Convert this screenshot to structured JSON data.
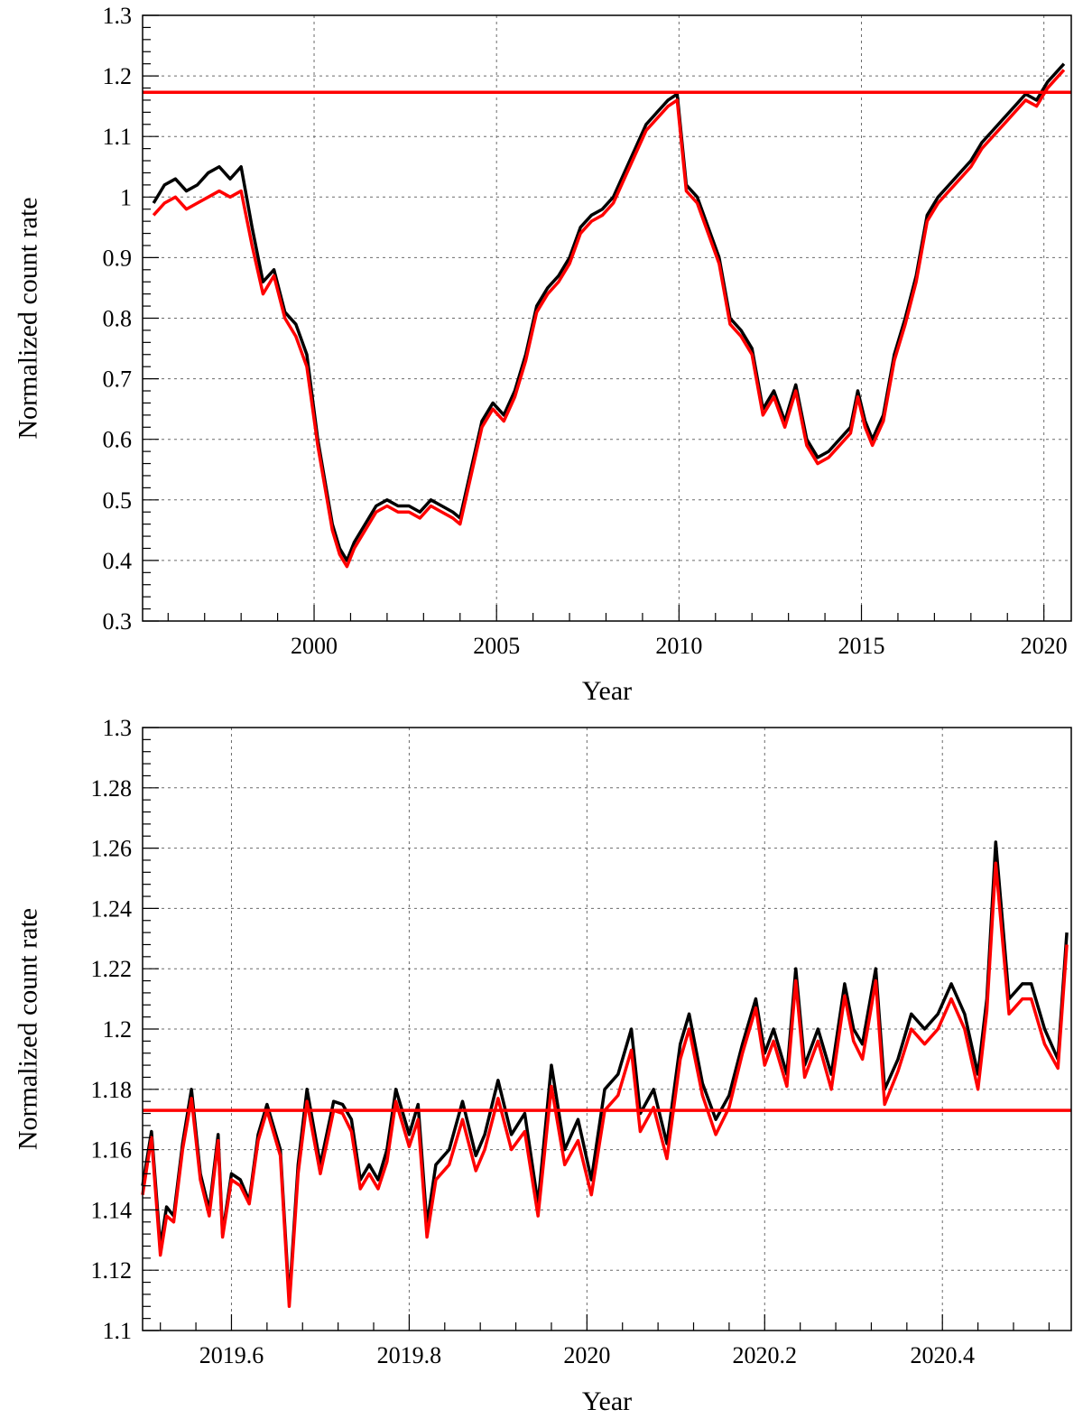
{
  "chart_data": [
    {
      "type": "line",
      "title": "",
      "xlabel": "Year",
      "ylabel": "Normalized count rate",
      "xlim": [
        1995.3,
        2020.75
      ],
      "ylim": [
        0.3,
        1.3
      ],
      "grid": true,
      "x_ticks": [
        2000,
        2005,
        2010,
        2015,
        2020
      ],
      "x_tick_labels": [
        "2000",
        "2005",
        "2010",
        "2015",
        "2020"
      ],
      "y_ticks": [
        0.3,
        0.4,
        0.5,
        0.6,
        0.7,
        0.8,
        0.9,
        1.0,
        1.1,
        1.2,
        1.3
      ],
      "y_tick_labels": [
        "0.3",
        "0.4",
        "0.5",
        "0.6",
        "0.7",
        "0.8",
        "0.9",
        "1",
        "1.1",
        "1.2",
        "1.3"
      ],
      "reference_line": {
        "y": 1.173,
        "color": "#ff0000"
      },
      "series": [
        {
          "color": "#000000",
          "x": [
            1995.6,
            1995.9,
            1996.2,
            1996.5,
            1996.8,
            1997.1,
            1997.4,
            1997.7,
            1998.0,
            1998.3,
            1998.6,
            1998.9,
            1999.2,
            1999.5,
            1999.8,
            2000.1,
            2000.3,
            2000.5,
            2000.7,
            2000.9,
            2001.1,
            2001.4,
            2001.7,
            2002.0,
            2002.3,
            2002.6,
            2002.9,
            2003.2,
            2003.5,
            2003.8,
            2004.0,
            2004.3,
            2004.6,
            2004.9,
            2005.2,
            2005.5,
            2005.8,
            2006.1,
            2006.4,
            2006.7,
            2007.0,
            2007.3,
            2007.6,
            2007.9,
            2008.2,
            2008.5,
            2008.8,
            2009.1,
            2009.4,
            2009.7,
            2009.95,
            2010.2,
            2010.5,
            2010.8,
            2011.1,
            2011.4,
            2011.7,
            2012.0,
            2012.3,
            2012.6,
            2012.9,
            2013.2,
            2013.5,
            2013.8,
            2014.1,
            2014.4,
            2014.7,
            2014.9,
            2015.1,
            2015.3,
            2015.6,
            2015.9,
            2016.2,
            2016.5,
            2016.8,
            2017.1,
            2017.4,
            2017.7,
            2018.0,
            2018.3,
            2018.6,
            2018.9,
            2019.2,
            2019.5,
            2019.8,
            2020.1,
            2020.4,
            2020.55
          ],
          "y": [
            0.99,
            1.02,
            1.03,
            1.01,
            1.02,
            1.04,
            1.05,
            1.03,
            1.05,
            0.95,
            0.86,
            0.88,
            0.81,
            0.79,
            0.74,
            0.6,
            0.53,
            0.46,
            0.42,
            0.4,
            0.43,
            0.46,
            0.49,
            0.5,
            0.49,
            0.49,
            0.48,
            0.5,
            0.49,
            0.48,
            0.47,
            0.55,
            0.63,
            0.66,
            0.64,
            0.68,
            0.74,
            0.82,
            0.85,
            0.87,
            0.9,
            0.95,
            0.97,
            0.98,
            1.0,
            1.04,
            1.08,
            1.12,
            1.14,
            1.16,
            1.17,
            1.02,
            1.0,
            0.95,
            0.9,
            0.8,
            0.78,
            0.75,
            0.65,
            0.68,
            0.63,
            0.69,
            0.6,
            0.57,
            0.58,
            0.6,
            0.62,
            0.68,
            0.63,
            0.6,
            0.64,
            0.74,
            0.8,
            0.87,
            0.97,
            1.0,
            1.02,
            1.04,
            1.06,
            1.09,
            1.11,
            1.13,
            1.15,
            1.17,
            1.16,
            1.19,
            1.21,
            1.22
          ]
        },
        {
          "color": "#ff0000",
          "x": [
            1995.6,
            1995.9,
            1996.2,
            1996.5,
            1996.8,
            1997.1,
            1997.4,
            1997.7,
            1998.0,
            1998.3,
            1998.6,
            1998.9,
            1999.2,
            1999.5,
            1999.8,
            2000.1,
            2000.3,
            2000.5,
            2000.7,
            2000.9,
            2001.1,
            2001.4,
            2001.7,
            2002.0,
            2002.3,
            2002.6,
            2002.9,
            2003.2,
            2003.5,
            2003.8,
            2004.0,
            2004.3,
            2004.6,
            2004.9,
            2005.2,
            2005.5,
            2005.8,
            2006.1,
            2006.4,
            2006.7,
            2007.0,
            2007.3,
            2007.6,
            2007.9,
            2008.2,
            2008.5,
            2008.8,
            2009.1,
            2009.4,
            2009.7,
            2009.95,
            2010.2,
            2010.5,
            2010.8,
            2011.1,
            2011.4,
            2011.7,
            2012.0,
            2012.3,
            2012.6,
            2012.9,
            2013.2,
            2013.5,
            2013.8,
            2014.1,
            2014.4,
            2014.7,
            2014.9,
            2015.1,
            2015.3,
            2015.6,
            2015.9,
            2016.2,
            2016.5,
            2016.8,
            2017.1,
            2017.4,
            2017.7,
            2018.0,
            2018.3,
            2018.6,
            2018.9,
            2019.2,
            2019.5,
            2019.8,
            2020.1,
            2020.4,
            2020.55
          ],
          "y": [
            0.97,
            0.99,
            1.0,
            0.98,
            0.99,
            1.0,
            1.01,
            1.0,
            1.01,
            0.92,
            0.84,
            0.87,
            0.8,
            0.77,
            0.72,
            0.59,
            0.52,
            0.45,
            0.41,
            0.39,
            0.42,
            0.45,
            0.48,
            0.49,
            0.48,
            0.48,
            0.47,
            0.49,
            0.48,
            0.47,
            0.46,
            0.54,
            0.62,
            0.65,
            0.63,
            0.67,
            0.73,
            0.81,
            0.84,
            0.86,
            0.89,
            0.94,
            0.96,
            0.97,
            0.99,
            1.03,
            1.07,
            1.11,
            1.13,
            1.15,
            1.16,
            1.01,
            0.99,
            0.94,
            0.89,
            0.79,
            0.77,
            0.74,
            0.64,
            0.67,
            0.62,
            0.68,
            0.59,
            0.56,
            0.57,
            0.59,
            0.61,
            0.67,
            0.62,
            0.59,
            0.63,
            0.73,
            0.79,
            0.86,
            0.96,
            0.99,
            1.01,
            1.03,
            1.05,
            1.08,
            1.1,
            1.12,
            1.14,
            1.16,
            1.15,
            1.18,
            1.2,
            1.21
          ]
        }
      ]
    },
    {
      "type": "line",
      "title": "",
      "xlabel": "Year",
      "ylabel": "Normalized count rate",
      "xlim": [
        2019.5,
        2020.545
      ],
      "ylim": [
        1.1,
        1.3
      ],
      "grid": true,
      "x_ticks": [
        2019.6,
        2019.8,
        2020.0,
        2020.2,
        2020.4
      ],
      "x_tick_labels": [
        "2019.6",
        "2019.8",
        "2020",
        "2020.2",
        "2020.4"
      ],
      "y_ticks": [
        1.1,
        1.12,
        1.14,
        1.16,
        1.18,
        1.2,
        1.22,
        1.24,
        1.26,
        1.28,
        1.3
      ],
      "y_tick_labels": [
        "1.1",
        "1.12",
        "1.14",
        "1.16",
        "1.18",
        "1.2",
        "1.22",
        "1.24",
        "1.26",
        "1.28",
        "1.3"
      ],
      "reference_line": {
        "y": 1.173,
        "color": "#ff0000"
      },
      "series": [
        {
          "color": "#000000",
          "x": [
            2019.5,
            2019.51,
            2019.52,
            2019.527,
            2019.535,
            2019.545,
            2019.555,
            2019.565,
            2019.575,
            2019.585,
            2019.59,
            2019.6,
            2019.61,
            2019.62,
            2019.63,
            2019.64,
            2019.655,
            2019.665,
            2019.675,
            2019.685,
            2019.7,
            2019.715,
            2019.725,
            2019.735,
            2019.745,
            2019.755,
            2019.765,
            2019.775,
            2019.785,
            2019.8,
            2019.81,
            2019.82,
            2019.83,
            2019.845,
            2019.86,
            2019.875,
            2019.885,
            2019.9,
            2019.915,
            2019.93,
            2019.945,
            2019.96,
            2019.975,
            2019.99,
            2020.005,
            2020.02,
            2020.035,
            2020.05,
            2020.06,
            2020.075,
            2020.09,
            2020.105,
            2020.115,
            2020.13,
            2020.145,
            2020.16,
            2020.175,
            2020.19,
            2020.2,
            2020.21,
            2020.225,
            2020.235,
            2020.245,
            2020.26,
            2020.275,
            2020.29,
            2020.3,
            2020.31,
            2020.325,
            2020.335,
            2020.35,
            2020.365,
            2020.38,
            2020.395,
            2020.41,
            2020.425,
            2020.44,
            2020.45,
            2020.46,
            2020.475,
            2020.49,
            2020.5,
            2020.515,
            2020.53,
            2020.54
          ],
          "y": [
            1.148,
            1.166,
            1.128,
            1.141,
            1.138,
            1.162,
            1.18,
            1.152,
            1.14,
            1.165,
            1.132,
            1.152,
            1.15,
            1.143,
            1.165,
            1.175,
            1.16,
            1.11,
            1.155,
            1.18,
            1.155,
            1.176,
            1.175,
            1.17,
            1.15,
            1.155,
            1.15,
            1.16,
            1.18,
            1.165,
            1.175,
            1.135,
            1.155,
            1.16,
            1.176,
            1.158,
            1.165,
            1.183,
            1.165,
            1.172,
            1.142,
            1.188,
            1.16,
            1.17,
            1.15,
            1.18,
            1.185,
            1.2,
            1.172,
            1.18,
            1.162,
            1.195,
            1.205,
            1.182,
            1.17,
            1.178,
            1.195,
            1.21,
            1.192,
            1.2,
            1.185,
            1.22,
            1.188,
            1.2,
            1.185,
            1.215,
            1.2,
            1.195,
            1.22,
            1.18,
            1.19,
            1.205,
            1.2,
            1.205,
            1.215,
            1.205,
            1.185,
            1.21,
            1.262,
            1.21,
            1.215,
            1.215,
            1.2,
            1.19,
            1.232
          ]
        },
        {
          "color": "#ff0000",
          "x": [
            2019.5,
            2019.51,
            2019.52,
            2019.527,
            2019.535,
            2019.545,
            2019.555,
            2019.565,
            2019.575,
            2019.585,
            2019.59,
            2019.6,
            2019.61,
            2019.62,
            2019.63,
            2019.64,
            2019.655,
            2019.665,
            2019.675,
            2019.685,
            2019.7,
            2019.715,
            2019.725,
            2019.735,
            2019.745,
            2019.755,
            2019.765,
            2019.775,
            2019.785,
            2019.8,
            2019.81,
            2019.82,
            2019.83,
            2019.845,
            2019.86,
            2019.875,
            2019.885,
            2019.9,
            2019.915,
            2019.93,
            2019.945,
            2019.96,
            2019.975,
            2019.99,
            2020.005,
            2020.02,
            2020.035,
            2020.05,
            2020.06,
            2020.075,
            2020.09,
            2020.105,
            2020.115,
            2020.13,
            2020.145,
            2020.16,
            2020.175,
            2020.19,
            2020.2,
            2020.21,
            2020.225,
            2020.235,
            2020.245,
            2020.26,
            2020.275,
            2020.29,
            2020.3,
            2020.31,
            2020.325,
            2020.335,
            2020.35,
            2020.365,
            2020.38,
            2020.395,
            2020.41,
            2020.425,
            2020.44,
            2020.45,
            2020.46,
            2020.475,
            2020.49,
            2020.5,
            2020.515,
            2020.53,
            2020.54
          ],
          "y": [
            1.145,
            1.164,
            1.125,
            1.138,
            1.136,
            1.16,
            1.177,
            1.15,
            1.138,
            1.163,
            1.131,
            1.15,
            1.148,
            1.142,
            1.163,
            1.173,
            1.158,
            1.108,
            1.152,
            1.176,
            1.152,
            1.173,
            1.172,
            1.166,
            1.147,
            1.152,
            1.147,
            1.156,
            1.176,
            1.161,
            1.17,
            1.131,
            1.15,
            1.155,
            1.17,
            1.153,
            1.16,
            1.177,
            1.16,
            1.166,
            1.138,
            1.181,
            1.155,
            1.163,
            1.145,
            1.173,
            1.178,
            1.193,
            1.166,
            1.174,
            1.157,
            1.19,
            1.2,
            1.178,
            1.165,
            1.174,
            1.192,
            1.207,
            1.188,
            1.196,
            1.181,
            1.216,
            1.184,
            1.196,
            1.18,
            1.211,
            1.196,
            1.19,
            1.216,
            1.175,
            1.186,
            1.2,
            1.195,
            1.2,
            1.21,
            1.2,
            1.18,
            1.206,
            1.255,
            1.205,
            1.21,
            1.21,
            1.195,
            1.187,
            1.228
          ]
        }
      ]
    }
  ]
}
